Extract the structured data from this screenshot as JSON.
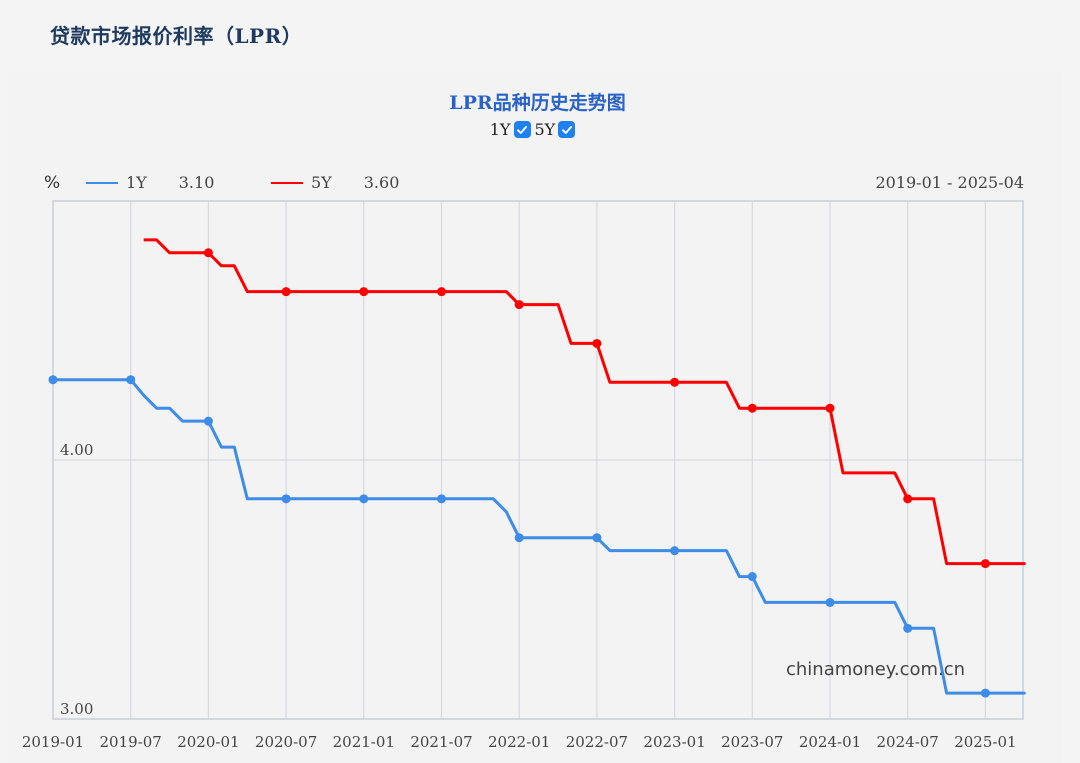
{
  "page": {
    "title": "贷款市场报价利率（LPR）"
  },
  "chart_header": {
    "title": "LPR品种历史走势图",
    "toggles": [
      {
        "label": "1Y",
        "checked": true
      },
      {
        "label": "5Y",
        "checked": true
      }
    ],
    "unit": "%",
    "legend": [
      {
        "name": "1Y",
        "latest": "3.10",
        "color": "#3d8ce8"
      },
      {
        "name": "5Y",
        "latest": "3.60",
        "color": "#ff0000"
      }
    ],
    "date_range": "2019-01 - 2025-04"
  },
  "watermark": "chinamoney.com.cn",
  "colors": {
    "series_1y": "#3d8ce8",
    "series_5y": "#ff0000",
    "grid": "#d5d9e0",
    "title_blue": "#2a62c9",
    "page_title": "#1e3a5f",
    "checkbox": "#1f80f0"
  },
  "chart_data": {
    "type": "line",
    "title": "LPR品种历史走势图",
    "xlabel": "",
    "ylabel": "%",
    "xlim": [
      "2019-01",
      "2025-04"
    ],
    "ylim": [
      3.0,
      5.0
    ],
    "y_ticks": [
      "3.00",
      "4.00"
    ],
    "x_ticks": [
      "2019-01",
      "2019-07",
      "2020-01",
      "2020-07",
      "2021-01",
      "2021-07",
      "2022-01",
      "2022-07",
      "2023-01",
      "2023-07",
      "2024-01",
      "2024-07",
      "2025-01"
    ],
    "grid": true,
    "legend_position": "top-left",
    "markers_at": [
      "2019-01",
      "2019-07",
      "2020-01",
      "2020-07",
      "2021-01",
      "2021-07",
      "2022-01",
      "2022-07",
      "2023-01",
      "2023-07",
      "2024-01",
      "2024-07",
      "2025-01"
    ],
    "x": [
      "2019-01",
      "2019-02",
      "2019-03",
      "2019-04",
      "2019-05",
      "2019-06",
      "2019-07",
      "2019-08",
      "2019-09",
      "2019-10",
      "2019-11",
      "2019-12",
      "2020-01",
      "2020-02",
      "2020-03",
      "2020-04",
      "2020-05",
      "2020-06",
      "2020-07",
      "2020-08",
      "2020-09",
      "2020-10",
      "2020-11",
      "2020-12",
      "2021-01",
      "2021-02",
      "2021-03",
      "2021-04",
      "2021-05",
      "2021-06",
      "2021-07",
      "2021-08",
      "2021-09",
      "2021-10",
      "2021-11",
      "2021-12",
      "2022-01",
      "2022-02",
      "2022-03",
      "2022-04",
      "2022-05",
      "2022-06",
      "2022-07",
      "2022-08",
      "2022-09",
      "2022-10",
      "2022-11",
      "2022-12",
      "2023-01",
      "2023-02",
      "2023-03",
      "2023-04",
      "2023-05",
      "2023-06",
      "2023-07",
      "2023-08",
      "2023-09",
      "2023-10",
      "2023-11",
      "2023-12",
      "2024-01",
      "2024-02",
      "2024-03",
      "2024-04",
      "2024-05",
      "2024-06",
      "2024-07",
      "2024-08",
      "2024-09",
      "2024-10",
      "2024-11",
      "2024-12",
      "2025-01",
      "2025-02",
      "2025-03",
      "2025-04"
    ],
    "series": [
      {
        "name": "1Y",
        "color": "#3d8ce8",
        "values": [
          4.31,
          4.31,
          4.31,
          4.31,
          4.31,
          4.31,
          4.31,
          4.25,
          4.2,
          4.2,
          4.15,
          4.15,
          4.15,
          4.05,
          4.05,
          3.85,
          3.85,
          3.85,
          3.85,
          3.85,
          3.85,
          3.85,
          3.85,
          3.85,
          3.85,
          3.85,
          3.85,
          3.85,
          3.85,
          3.85,
          3.85,
          3.85,
          3.85,
          3.85,
          3.85,
          3.8,
          3.7,
          3.7,
          3.7,
          3.7,
          3.7,
          3.7,
          3.7,
          3.65,
          3.65,
          3.65,
          3.65,
          3.65,
          3.65,
          3.65,
          3.65,
          3.65,
          3.65,
          3.55,
          3.55,
          3.45,
          3.45,
          3.45,
          3.45,
          3.45,
          3.45,
          3.45,
          3.45,
          3.45,
          3.45,
          3.45,
          3.35,
          3.35,
          3.35,
          3.1,
          3.1,
          3.1,
          3.1,
          3.1,
          3.1,
          3.1
        ]
      },
      {
        "name": "5Y",
        "color": "#ff0000",
        "values": [
          null,
          null,
          null,
          null,
          null,
          null,
          null,
          4.85,
          4.85,
          4.8,
          4.8,
          4.8,
          4.8,
          4.75,
          4.75,
          4.65,
          4.65,
          4.65,
          4.65,
          4.65,
          4.65,
          4.65,
          4.65,
          4.65,
          4.65,
          4.65,
          4.65,
          4.65,
          4.65,
          4.65,
          4.65,
          4.65,
          4.65,
          4.65,
          4.65,
          4.65,
          4.6,
          4.6,
          4.6,
          4.6,
          4.45,
          4.45,
          4.45,
          4.3,
          4.3,
          4.3,
          4.3,
          4.3,
          4.3,
          4.3,
          4.3,
          4.3,
          4.3,
          4.2,
          4.2,
          4.2,
          4.2,
          4.2,
          4.2,
          4.2,
          4.2,
          3.95,
          3.95,
          3.95,
          3.95,
          3.95,
          3.85,
          3.85,
          3.85,
          3.6,
          3.6,
          3.6,
          3.6,
          3.6,
          3.6,
          3.6
        ]
      }
    ]
  }
}
